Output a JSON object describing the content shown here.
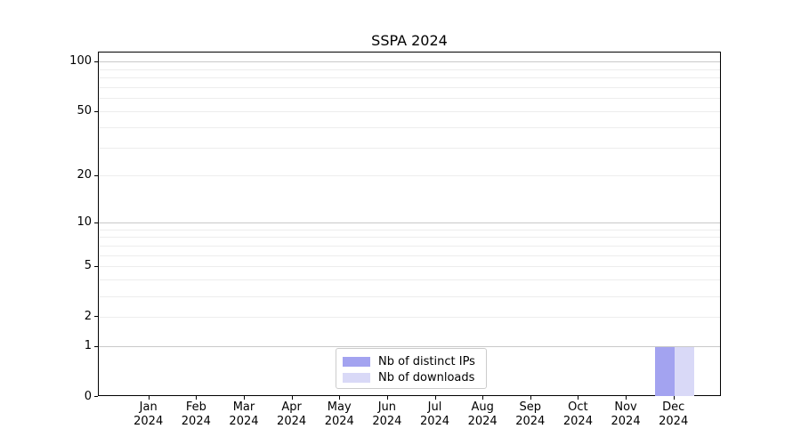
{
  "chart_data": {
    "type": "bar",
    "title": "SSPA 2024",
    "scale": "log1p-symlog",
    "scale_top_value": 114.4,
    "categories": [
      "Jan",
      "Feb",
      "Mar",
      "Apr",
      "May",
      "Jun",
      "Jul",
      "Aug",
      "Sep",
      "Oct",
      "Nov",
      "Dec"
    ],
    "category_year": "2024",
    "series": [
      {
        "name": "Nb of distinct IPs",
        "color": "#a3a3f0",
        "values": [
          0,
          0,
          0,
          0,
          0,
          0,
          0,
          0,
          0,
          0,
          0,
          1
        ]
      },
      {
        "name": "Nb of downloads",
        "color": "#d9d9f7",
        "values": [
          0,
          0,
          0,
          0,
          0,
          0,
          0,
          0,
          0,
          0,
          0,
          1
        ]
      }
    ],
    "yticks": [
      0,
      1,
      2,
      5,
      10,
      20,
      50,
      100
    ],
    "grid_major_values": [
      1,
      10,
      100
    ],
    "grid_minor_values": [
      2,
      3,
      4,
      5,
      6,
      7,
      8,
      9,
      20,
      30,
      40,
      50,
      60,
      70,
      80,
      90
    ],
    "ylim": [
      0,
      114.4
    ],
    "xlabel": "",
    "ylabel": "",
    "legend_position": "lower center",
    "grid": "on"
  },
  "colors": {
    "grid_major": "#c9c9c9",
    "grid_minor": "#ededed",
    "spine": "#000000",
    "legend_border": "#cccccc",
    "background": "#ffffff"
  }
}
